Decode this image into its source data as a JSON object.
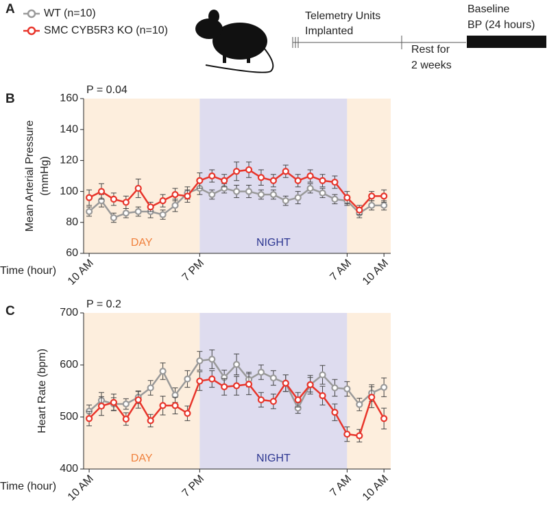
{
  "panel_labels": [
    "A",
    "B",
    "C"
  ],
  "timeline": {
    "steps": [
      {
        "lines": [
          "Telemetry Units",
          "Implanted"
        ]
      },
      {
        "lines": [
          "Rest for",
          "2 weeks"
        ]
      },
      {
        "lines": [
          "Baseline",
          "BP (24 hours)"
        ]
      }
    ]
  },
  "chart_data": [
    {
      "type": "line",
      "annotation": "P = 0.04",
      "xlabel": "Time (hour)",
      "ylabel": [
        "Mean Arterial Pressure",
        "(mmHg)"
      ],
      "regions": [
        {
          "label": "DAY",
          "color": "#f07f3a",
          "fill": "#fdeedd"
        },
        {
          "label": "NIGHT",
          "color": "#2b3590",
          "fill": "#dedcef"
        }
      ],
      "x": [
        0,
        1,
        2,
        3,
        4,
        5,
        6,
        7,
        8,
        9,
        10,
        11,
        12,
        13,
        14,
        15,
        16,
        17,
        18,
        19,
        20,
        21,
        22,
        23,
        24
      ],
      "xlim": [
        -0.45,
        24.55
      ],
      "xticks": [
        {
          "value": 0,
          "label": "10 AM"
        },
        {
          "value": 9,
          "label": "7 PM"
        },
        {
          "value": 21,
          "label": "7 AM"
        },
        {
          "value": 24,
          "label": "10 AM"
        }
      ],
      "ylim": [
        60,
        160
      ],
      "yticks": [
        60,
        80,
        100,
        120,
        140,
        160
      ],
      "series": [
        {
          "name": "WT (n=10)",
          "color": "#999999",
          "values": [
            87,
            94,
            83,
            86,
            87,
            87,
            85,
            91,
            99,
            102,
            98,
            102,
            100,
            100,
            98,
            98,
            94,
            96,
            102,
            99,
            95,
            94,
            86,
            91,
            91
          ],
          "errors": [
            3,
            4,
            3,
            3,
            3,
            4,
            3,
            4,
            4,
            4,
            3,
            3,
            4,
            4,
            3,
            3,
            3,
            4,
            3,
            3,
            3,
            3,
            3,
            3,
            3
          ]
        },
        {
          "name": "SMC CYB5R3 KO (n=10)",
          "color": "#e8342a",
          "values": [
            96,
            100,
            95,
            93,
            102,
            90,
            94,
            98,
            97,
            107,
            110,
            107,
            113,
            114,
            109,
            107,
            113,
            107,
            110,
            107,
            106,
            96,
            88,
            97,
            97
          ],
          "errors": [
            5,
            5,
            4,
            4,
            6,
            3,
            4,
            4,
            4,
            5,
            4,
            4,
            6,
            5,
            5,
            4,
            4,
            4,
            4,
            4,
            4,
            4,
            3,
            3,
            4
          ]
        }
      ]
    },
    {
      "type": "line",
      "annotation": "P = 0.2",
      "xlabel": "Time (hour)",
      "ylabel": "Heart Rate (bpm)",
      "regions": [
        {
          "label": "DAY",
          "color": "#f07f3a",
          "fill": "#fdeedd"
        },
        {
          "label": "NIGHT",
          "color": "#2b3590",
          "fill": "#dedcef"
        }
      ],
      "x": [
        0,
        1,
        2,
        3,
        4,
        5,
        6,
        7,
        8,
        9,
        10,
        11,
        12,
        13,
        14,
        15,
        16,
        17,
        18,
        19,
        20,
        21,
        22,
        23,
        24
      ],
      "xlim": [
        -0.45,
        24.55
      ],
      "xticks": [
        {
          "value": 0,
          "label": "10 AM"
        },
        {
          "value": 9,
          "label": "7 PM"
        },
        {
          "value": 21,
          "label": "7 AM"
        },
        {
          "value": 24,
          "label": "10 AM"
        }
      ],
      "ylim": [
        400,
        700
      ],
      "yticks": [
        400,
        500,
        600,
        700
      ],
      "series": [
        {
          "name": "WT (n=10)",
          "color": "#999999",
          "values": [
            511,
            532,
            525,
            525,
            538,
            556,
            588,
            542,
            573,
            608,
            611,
            576,
            601,
            572,
            586,
            575,
            565,
            517,
            562,
            581,
            556,
            554,
            524,
            546,
            557
          ],
          "errors": [
            12,
            15,
            12,
            10,
            12,
            14,
            16,
            14,
            16,
            18,
            18,
            14,
            20,
            14,
            14,
            14,
            16,
            10,
            14,
            18,
            16,
            14,
            12,
            16,
            18
          ]
        },
        {
          "name": "SMC CYB5R3 KO (n=10)",
          "color": "#e8342a",
          "values": [
            497,
            521,
            528,
            496,
            533,
            493,
            522,
            522,
            507,
            569,
            573,
            558,
            560,
            563,
            533,
            530,
            565,
            533,
            562,
            541,
            509,
            467,
            464,
            538,
            497
          ],
          "errors": [
            14,
            18,
            16,
            12,
            16,
            12,
            18,
            16,
            14,
            18,
            16,
            16,
            18,
            20,
            14,
            14,
            16,
            14,
            18,
            18,
            16,
            14,
            12,
            20,
            20
          ]
        }
      ]
    }
  ]
}
